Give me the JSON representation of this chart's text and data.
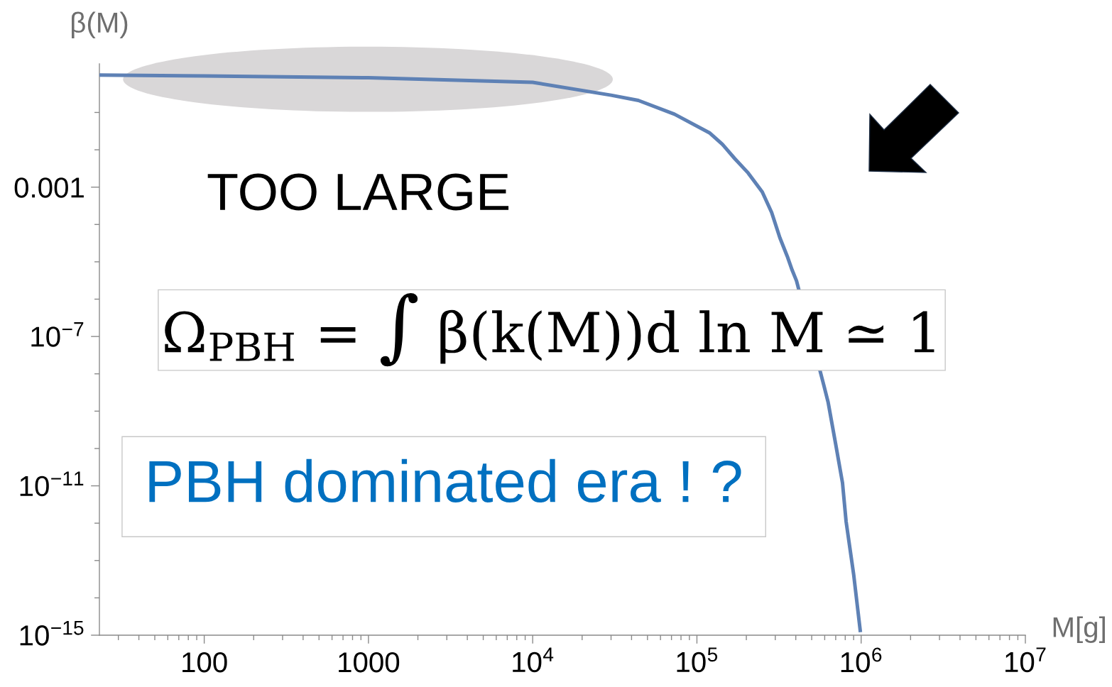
{
  "chart_data": {
    "type": "line",
    "xlabel": "M[g]",
    "ylabel": "β(M)",
    "annotations": [
      "TOO LARGE",
      "Ω$_{PBH}$ = ∫ β(k(M))d ln M ≃ 1",
      "PBH dominated era ! ?"
    ],
    "x": [
      23,
      100,
      1000,
      10000,
      30000,
      44000,
      73000,
      120000,
      143000,
      170000,
      205000,
      250000,
      285000,
      320000,
      355000,
      380000,
      404000,
      593000,
      630000,
      700000,
      770000,
      810000,
      900000,
      990000
    ],
    "series": [
      {
        "color": "#5e81b5",
        "values": [
          1.0,
          0.95,
          0.85,
          0.64,
          0.29,
          0.21,
          0.09,
          0.028,
          0.014,
          0.0058,
          0.0024,
          0.00074,
          0.00021,
          4.4e-05,
          1.4e-05,
          6e-06,
          3.1e-06,
          4.9e-09,
          1.7e-09,
          1.3e-10,
          1.2e-11,
          1.1e-12,
          4.3e-14,
          1.2e-15
        ]
      }
    ],
    "log": "xy",
    "xlim": [
      23,
      10000000
    ],
    "ylim": [
      1e-15,
      2
    ],
    "xticks": [
      {
        "value": 30,
        "label": null
      },
      {
        "value": 40,
        "label": null
      },
      {
        "value": 50,
        "label": null
      },
      {
        "value": 60,
        "label": null
      },
      {
        "value": 70,
        "label": null
      },
      {
        "value": 80,
        "label": null
      },
      {
        "value": 90,
        "label": null
      },
      100,
      {
        "value": 200,
        "label": null
      },
      {
        "value": 300,
        "label": null
      },
      {
        "value": 400,
        "label": null
      },
      {
        "value": 500,
        "label": null
      },
      {
        "value": 600,
        "label": null
      },
      {
        "value": 700,
        "label": null
      },
      {
        "value": 800,
        "label": null
      },
      {
        "value": 900,
        "label": null
      },
      1000,
      {
        "value": 2000,
        "label": null
      },
      {
        "value": 3000,
        "label": null
      },
      {
        "value": 4000,
        "label": null
      },
      {
        "value": 5000,
        "label": null
      },
      {
        "value": 6000,
        "label": null
      },
      {
        "value": 7000,
        "label": null
      },
      {
        "value": 8000,
        "label": null
      },
      {
        "value": 9000,
        "label": null
      },
      {
        "value": 10000,
        "label": "10$^{4}$"
      },
      {
        "value": 20000,
        "label": null
      },
      {
        "value": 30000,
        "label": null
      },
      {
        "value": 40000,
        "label": null
      },
      {
        "value": 50000,
        "label": null
      },
      {
        "value": 60000,
        "label": null
      },
      {
        "value": 70000,
        "label": null
      },
      {
        "value": 80000,
        "label": null
      },
      {
        "value": 90000,
        "label": null
      },
      {
        "value": 100000,
        "label": "10$^{5}$"
      },
      {
        "value": 200000,
        "label": null
      },
      {
        "value": 300000,
        "label": null
      },
      {
        "value": 400000,
        "label": null
      },
      {
        "value": 500000,
        "label": null
      },
      {
        "value": 600000,
        "label": null
      },
      {
        "value": 700000,
        "label": null
      },
      {
        "value": 800000,
        "label": null
      },
      {
        "value": 900000,
        "label": null
      },
      {
        "value": 1000000,
        "label": "10$^{6}$"
      },
      {
        "value": 2000000,
        "label": null
      },
      {
        "value": 3000000,
        "label": null
      },
      {
        "value": 4000000,
        "label": null
      },
      {
        "value": 5000000,
        "label": null
      },
      {
        "value": 6000000,
        "label": null
      },
      {
        "value": 7000000,
        "label": null
      },
      {
        "value": 8000000,
        "label": null
      },
      {
        "value": 9000000,
        "label": null
      },
      {
        "value": 10000000,
        "label": "10$^{7}$"
      }
    ],
    "yticks": [
      {
        "value": 1e-15,
        "label": "10$^{−15}$"
      },
      {
        "value": 1e-14,
        "label": null
      },
      {
        "value": 1e-13,
        "label": null
      },
      {
        "value": 1e-12,
        "label": null
      },
      {
        "value": 1e-11,
        "label": "10$^{−11}$"
      },
      {
        "value": 1e-10,
        "label": null
      },
      {
        "value": 1e-09,
        "label": null
      },
      {
        "value": 1e-08,
        "label": null
      },
      {
        "value": 1e-07,
        "label": "10$^{−7}$"
      },
      {
        "value": 1e-06,
        "label": null
      },
      {
        "value": 1e-05,
        "label": null
      },
      {
        "value": 0.0001,
        "label": null
      },
      0.001,
      {
        "value": 0.01,
        "label": null
      },
      {
        "value": 0.1,
        "label": null
      }
    ],
    "grid": false,
    "marker": "none",
    "line_style": "solid"
  }
}
